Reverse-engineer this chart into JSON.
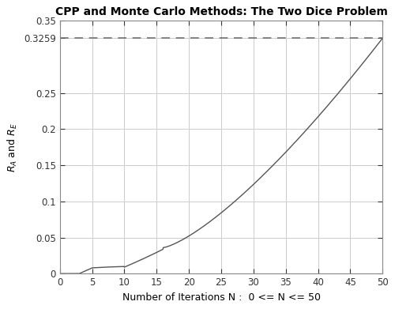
{
  "title": "CPP and Monte Carlo Methods: The Two Dice Problem",
  "xlabel": "Number of Iterations N :  0 <= N <= 50",
  "dashed_line_y": 0.3259,
  "xlim": [
    0,
    50
  ],
  "ylim": [
    0,
    0.35
  ],
  "yticks": [
    0,
    0.05,
    0.1,
    0.15,
    0.2,
    0.25,
    0.3259,
    0.35
  ],
  "yticklabels": [
    "0",
    "0.05",
    "0.1",
    "0.15",
    "0.2",
    "0.25",
    "0.3259",
    "0.35"
  ],
  "xticks": [
    0,
    5,
    10,
    15,
    20,
    25,
    30,
    35,
    40,
    45,
    50
  ],
  "line_color": "#555555",
  "dashed_color": "#666666",
  "grid_color": "#cccccc",
  "background_color": "#ffffff",
  "title_fontsize": 10,
  "label_fontsize": 9,
  "tick_fontsize": 8.5
}
